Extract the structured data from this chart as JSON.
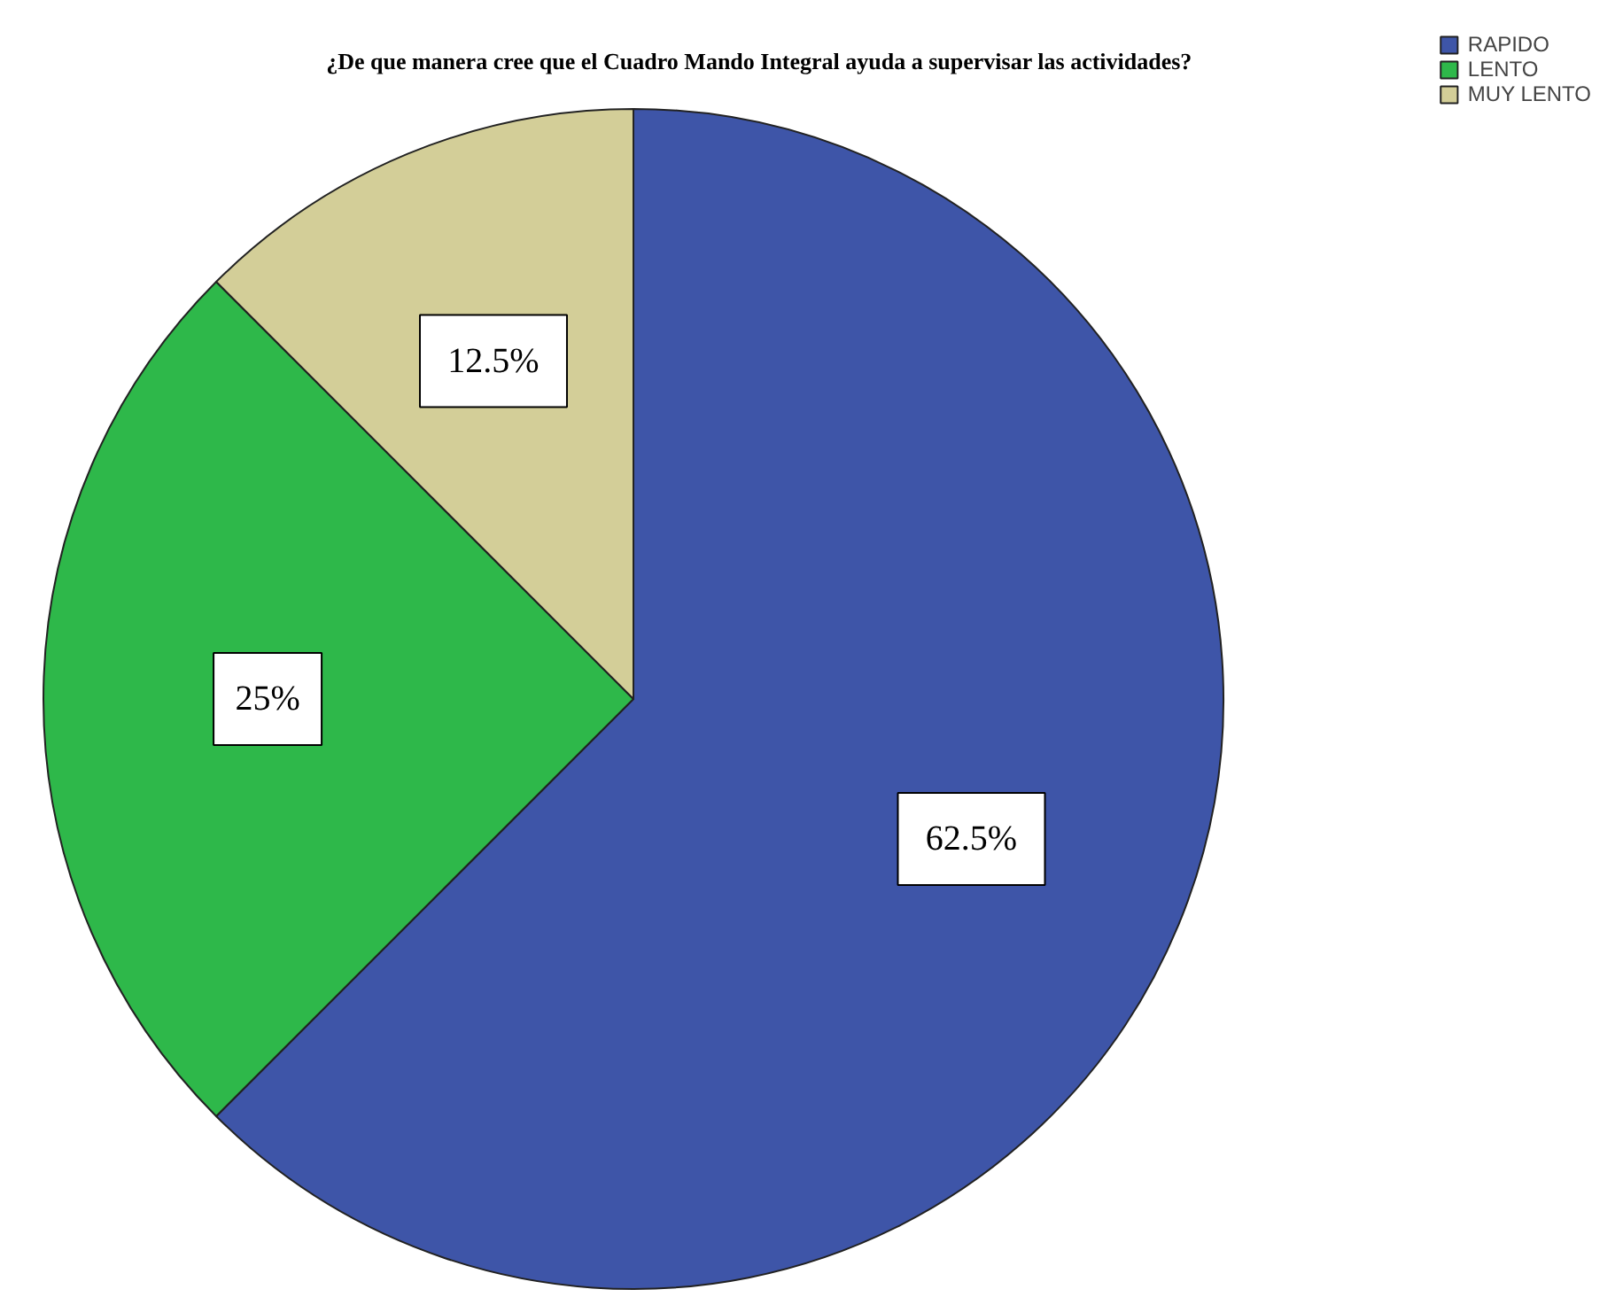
{
  "chart_data": {
    "type": "pie",
    "title": "¿De que manera cree que el Cuadro Mando Integral ayuda a supervisar las actividades?",
    "categories": [
      "RAPIDO",
      "LENTO",
      "MUY LENTO"
    ],
    "values": [
      62.5,
      25,
      12.5
    ],
    "colors": [
      "#3e55a8",
      "#2eb84a",
      "#d3ce98"
    ],
    "value_labels": [
      "62.5%",
      "25%",
      "12.5%"
    ],
    "legend": "top right"
  }
}
